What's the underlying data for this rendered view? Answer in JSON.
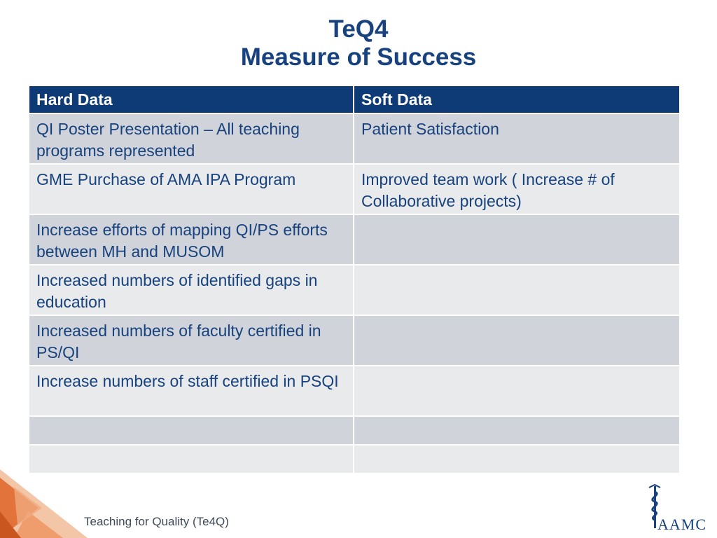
{
  "title": {
    "line1": "TeQ4",
    "line2": "Measure of Success"
  },
  "table": {
    "headers": [
      "Hard Data",
      "Soft Data"
    ],
    "rows": [
      [
        "QI Poster Presentation – All teaching programs represented",
        "Patient  Satisfaction"
      ],
      [
        "GME Purchase of AMA IPA Program",
        "Improved team work ( Increase # of Collaborative projects)"
      ],
      [
        "Increase efforts of mapping QI/PS efforts between MH and MUSOM",
        ""
      ],
      [
        "Increased numbers of identified gaps in education",
        ""
      ],
      [
        "Increased numbers of faculty certified in PS/QI",
        ""
      ],
      [
        "Increase numbers of staff certified in PSQI",
        ""
      ],
      [
        "",
        ""
      ],
      [
        "",
        ""
      ]
    ]
  },
  "footer": {
    "text": "Teaching for Quality (Te4Q)",
    "logo_text": "AAMC",
    "logo_icon": "caduceus-icon"
  },
  "colors": {
    "title": "#17427e",
    "header_bg": "#0e3a75",
    "row_dark": "#d0d4da",
    "row_light": "#e9eaec",
    "corner_orange": "#e2733a"
  }
}
